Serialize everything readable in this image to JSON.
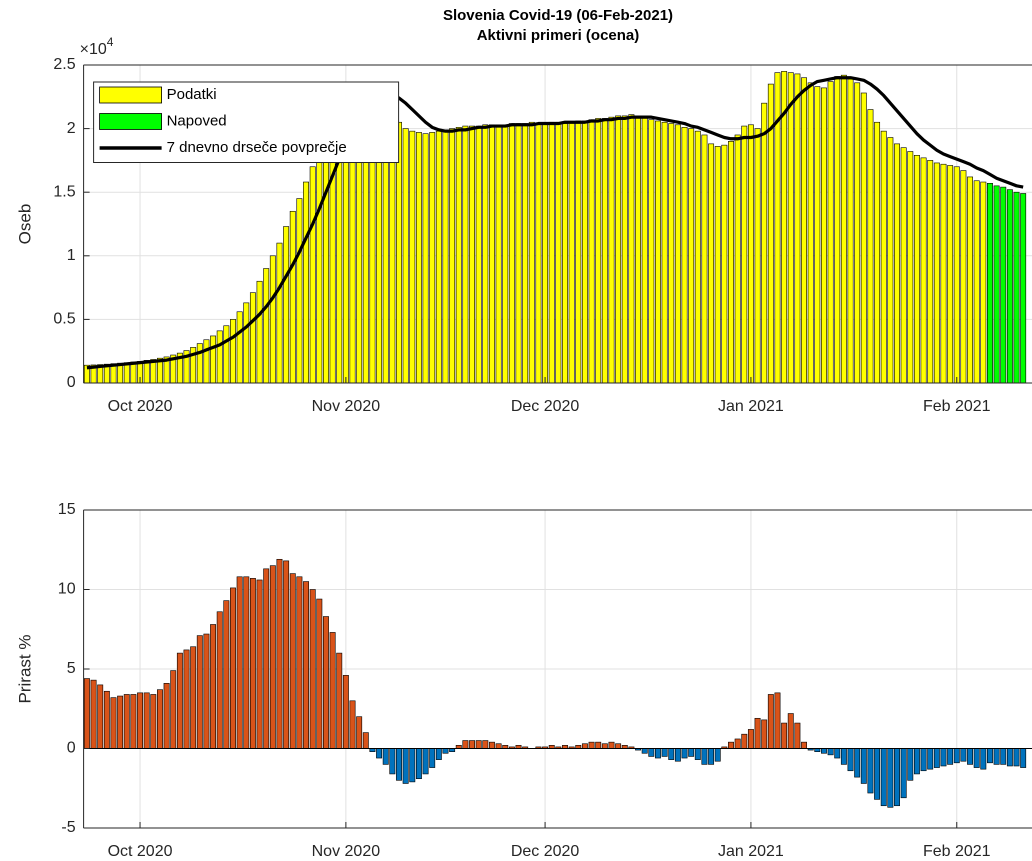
{
  "chart_data": [
    {
      "type": "bar",
      "title": "Slovenia Covid-19 (06-Feb-2021)",
      "subtitle": "Aktivni primeri (ocena)",
      "y_label": "Oseb",
      "y_multiplier": {
        "base": "×10",
        "exponent": "4"
      },
      "categories": [
        null,
        null,
        null,
        null,
        null,
        null,
        null,
        null,
        "Oct 2020",
        null,
        null,
        null,
        null,
        null,
        null,
        null,
        null,
        null,
        null,
        null,
        null,
        null,
        null,
        null,
        null,
        null,
        null,
        null,
        null,
        null,
        null,
        null,
        null,
        null,
        null,
        null,
        null,
        null,
        null,
        "Nov 2020",
        null,
        null,
        null,
        null,
        null,
        null,
        null,
        null,
        null,
        null,
        null,
        null,
        null,
        null,
        null,
        null,
        null,
        null,
        null,
        null,
        null,
        null,
        null,
        null,
        null,
        null,
        null,
        null,
        null,
        "Dec 2020",
        null,
        null,
        null,
        null,
        null,
        null,
        null,
        null,
        null,
        null,
        null,
        null,
        null,
        null,
        null,
        null,
        null,
        null,
        null,
        null,
        null,
        null,
        null,
        null,
        null,
        null,
        null,
        null,
        null,
        null,
        "Jan 2021",
        null,
        null,
        null,
        null,
        null,
        null,
        null,
        null,
        null,
        null,
        null,
        null,
        null,
        null,
        null,
        null,
        null,
        null,
        null,
        null,
        null,
        null,
        null,
        null,
        null,
        null,
        null,
        null,
        null,
        null,
        "Feb 2021",
        null,
        null,
        null,
        null,
        null,
        null,
        null,
        null,
        null,
        null
      ],
      "series": [
        {
          "name": "Podatki",
          "color": "#ffff00",
          "values": [
            1400,
            1420,
            1450,
            1480,
            1520,
            1560,
            1600,
            1650,
            1700,
            1780,
            1850,
            1950,
            2050,
            2200,
            2350,
            2550,
            2800,
            3100,
            3400,
            3700,
            4100,
            4500,
            5000,
            5600,
            6300,
            7100,
            8000,
            9000,
            10000,
            11000,
            12300,
            13500,
            14500,
            15800,
            17000,
            18300,
            19500,
            20600,
            21500,
            22300,
            23000,
            23300,
            23000,
            22500,
            22000,
            21500,
            21000,
            20500,
            20000,
            19800,
            19700,
            19600,
            19700,
            19800,
            19900,
            20000,
            20100,
            20200,
            20200,
            20200,
            20300,
            20300,
            20300,
            20300,
            20400,
            20400,
            20400,
            20500,
            20400,
            20400,
            20500,
            20500,
            20400,
            20500,
            20600,
            20600,
            20700,
            20800,
            20800,
            20900,
            21000,
            21000,
            21100,
            20900,
            20900,
            20700,
            20600,
            20500,
            20400,
            20300,
            20100,
            20000,
            19800,
            19500,
            18800,
            18600,
            18700,
            19000,
            19500,
            20200,
            20300,
            20000,
            22000,
            23500,
            24400,
            24500,
            24400,
            24300,
            24000,
            23600,
            23300,
            23200,
            23700,
            24100,
            24200,
            23900,
            23600,
            22800,
            21500,
            20500,
            19800,
            19300,
            18800,
            18500,
            18200,
            17900,
            17700,
            17500,
            17300,
            17200,
            17100,
            17000,
            16700,
            16200,
            15900,
            15800,
            null,
            null,
            null,
            null,
            null,
            null
          ]
        },
        {
          "name": "Napoved",
          "color": "#00ff00",
          "values": [
            null,
            null,
            null,
            null,
            null,
            null,
            null,
            null,
            null,
            null,
            null,
            null,
            null,
            null,
            null,
            null,
            null,
            null,
            null,
            null,
            null,
            null,
            null,
            null,
            null,
            null,
            null,
            null,
            null,
            null,
            null,
            null,
            null,
            null,
            null,
            null,
            null,
            null,
            null,
            null,
            null,
            null,
            null,
            null,
            null,
            null,
            null,
            null,
            null,
            null,
            null,
            null,
            null,
            null,
            null,
            null,
            null,
            null,
            null,
            null,
            null,
            null,
            null,
            null,
            null,
            null,
            null,
            null,
            null,
            null,
            null,
            null,
            null,
            null,
            null,
            null,
            null,
            null,
            null,
            null,
            null,
            null,
            null,
            null,
            null,
            null,
            null,
            null,
            null,
            null,
            null,
            null,
            null,
            null,
            null,
            null,
            null,
            null,
            null,
            null,
            null,
            null,
            null,
            null,
            null,
            null,
            null,
            null,
            null,
            null,
            null,
            null,
            null,
            null,
            null,
            null,
            null,
            null,
            null,
            null,
            null,
            null,
            null,
            null,
            null,
            null,
            null,
            null,
            null,
            null,
            null,
            null,
            null,
            null,
            null,
            null,
            15700,
            15500,
            15400,
            15200,
            15000,
            14900
          ]
        },
        {
          "name": "7 dnevno drseče povprečje",
          "color": "#000000",
          "type": "line",
          "values": [
            1200,
            1250,
            1300,
            1350,
            1400,
            1450,
            1500,
            1550,
            1600,
            1650,
            1700,
            1750,
            1800,
            1900,
            2000,
            2100,
            2250,
            2400,
            2600,
            2800,
            3000,
            3300,
            3600,
            4000,
            4400,
            4900,
            5400,
            6000,
            6700,
            7500,
            8400,
            9300,
            10300,
            11400,
            12500,
            13700,
            15000,
            16300,
            17600,
            18800,
            19900,
            20900,
            21700,
            22300,
            22700,
            22800,
            22700,
            22400,
            22000,
            21500,
            21000,
            20500,
            20100,
            19900,
            19800,
            19800,
            19900,
            19900,
            20000,
            20100,
            20100,
            20200,
            20200,
            20200,
            20300,
            20300,
            20300,
            20300,
            20400,
            20400,
            20400,
            20400,
            20500,
            20500,
            20500,
            20500,
            20600,
            20600,
            20700,
            20700,
            20800,
            20800,
            20900,
            20900,
            20900,
            20900,
            20800,
            20700,
            20600,
            20500,
            20400,
            20200,
            20100,
            19900,
            19700,
            19500,
            19300,
            19200,
            19200,
            19300,
            19300,
            19400,
            19600,
            20000,
            20600,
            21200,
            21900,
            22500,
            23000,
            23400,
            23700,
            23800,
            23900,
            24000,
            24000,
            24000,
            23900,
            23800,
            23500,
            23100,
            22600,
            22000,
            21400,
            20800,
            20200,
            19600,
            19100,
            18700,
            18300,
            18000,
            17800,
            17600,
            17400,
            17200,
            16900,
            16700,
            16400,
            16100,
            15900,
            15700,
            15500,
            15400
          ]
        }
      ],
      "ylim": [
        0,
        25000
      ],
      "yticks": [
        0,
        {
          "value": 5000,
          "label": "0.5"
        },
        {
          "value": 10000,
          "label": "1"
        },
        {
          "value": 15000,
          "label": "1.5"
        },
        {
          "value": 20000,
          "label": "2"
        },
        {
          "value": 25000,
          "label": "2.5"
        }
      ],
      "grid": true,
      "legend": "northwest"
    },
    {
      "type": "bar",
      "y_label": "Prirast %",
      "categories": [
        null,
        null,
        null,
        null,
        null,
        null,
        null,
        null,
        "Oct 2020",
        null,
        null,
        null,
        null,
        null,
        null,
        null,
        null,
        null,
        null,
        null,
        null,
        null,
        null,
        null,
        null,
        null,
        null,
        null,
        null,
        null,
        null,
        null,
        null,
        null,
        null,
        null,
        null,
        null,
        null,
        "Nov 2020",
        null,
        null,
        null,
        null,
        null,
        null,
        null,
        null,
        null,
        null,
        null,
        null,
        null,
        null,
        null,
        null,
        null,
        null,
        null,
        null,
        null,
        null,
        null,
        null,
        null,
        null,
        null,
        null,
        null,
        "Dec 2020",
        null,
        null,
        null,
        null,
        null,
        null,
        null,
        null,
        null,
        null,
        null,
        null,
        null,
        null,
        null,
        null,
        null,
        null,
        null,
        null,
        null,
        null,
        null,
        null,
        null,
        null,
        null,
        null,
        null,
        null,
        "Jan 2021",
        null,
        null,
        null,
        null,
        null,
        null,
        null,
        null,
        null,
        null,
        null,
        null,
        null,
        null,
        null,
        null,
        null,
        null,
        null,
        null,
        null,
        null,
        null,
        null,
        null,
        null,
        null,
        null,
        null,
        null,
        "Feb 2021",
        null,
        null,
        null,
        null,
        null,
        null,
        null,
        null,
        null,
        null
      ],
      "series": [
        {
          "color": "#d95319",
          "values": [
            4.4,
            4.3,
            4.0,
            3.6,
            3.2,
            3.3,
            3.4,
            3.4,
            3.5,
            3.5,
            3.4,
            3.7,
            4.1,
            4.9,
            6.0,
            6.2,
            6.4,
            7.1,
            7.2,
            7.8,
            8.6,
            9.3,
            10.1,
            10.8,
            10.8,
            10.7,
            10.6,
            11.3,
            11.5,
            11.9,
            11.8,
            11.0,
            10.8,
            10.5,
            10.0,
            9.4,
            8.3,
            7.3,
            6.0,
            4.6,
            3.0,
            2.0,
            1.0,
            -0.2,
            -0.6,
            -1.0,
            -1.6,
            -2.0,
            -2.2,
            -2.1,
            -1.9,
            -1.6,
            -1.2,
            -0.7,
            -0.3,
            -0.2,
            0.2,
            0.5,
            0.5,
            0.5,
            0.5,
            0.4,
            0.3,
            0.2,
            0.1,
            0.2,
            0.1,
            0.0,
            0.1,
            0.1,
            0.2,
            0.1,
            0.2,
            0.1,
            0.2,
            0.3,
            0.4,
            0.4,
            0.3,
            0.4,
            0.3,
            0.2,
            0.1,
            -0.1,
            -0.3,
            -0.5,
            -0.6,
            -0.5,
            -0.7,
            -0.8,
            -0.6,
            -0.5,
            -0.7,
            -1.0,
            -1.0,
            -0.8,
            0.1,
            0.4,
            0.6,
            0.9,
            1.2,
            1.9,
            1.8,
            3.4,
            3.5,
            1.6,
            2.2,
            1.6,
            0.4,
            -0.1,
            -0.2,
            -0.3,
            -0.4,
            -0.6,
            -1.0,
            -1.4,
            -1.8,
            -2.2,
            -2.8,
            -3.2,
            -3.6,
            -3.7,
            -3.6,
            -3.1,
            -2.0,
            -1.6,
            -1.4,
            -1.3,
            -1.2,
            -1.1,
            -1.0,
            -0.9,
            -0.8,
            -1.0,
            -1.2,
            -1.3,
            null,
            null,
            null,
            null,
            null,
            null
          ]
        },
        {
          "color": "#00ff00",
          "values": [
            null,
            null,
            null,
            null,
            null,
            null,
            null,
            null,
            null,
            null,
            null,
            null,
            null,
            null,
            null,
            null,
            null,
            null,
            null,
            null,
            null,
            null,
            null,
            null,
            null,
            null,
            null,
            null,
            null,
            null,
            null,
            null,
            null,
            null,
            null,
            null,
            null,
            null,
            null,
            null,
            null,
            null,
            null,
            null,
            null,
            null,
            null,
            null,
            null,
            null,
            null,
            null,
            null,
            null,
            null,
            null,
            null,
            null,
            null,
            null,
            null,
            null,
            null,
            null,
            null,
            null,
            null,
            null,
            null,
            null,
            null,
            null,
            null,
            null,
            null,
            null,
            null,
            null,
            null,
            null,
            null,
            null,
            null,
            null,
            null,
            null,
            null,
            null,
            null,
            null,
            null,
            null,
            null,
            null,
            null,
            null,
            null,
            null,
            null,
            null,
            null,
            null,
            null,
            null,
            null,
            null,
            null,
            null,
            null,
            null,
            null,
            null,
            null,
            null,
            null,
            null,
            null,
            null,
            null,
            null,
            null,
            null,
            null,
            null,
            null,
            null,
            null,
            null,
            null,
            null,
            null,
            null,
            null,
            null,
            null,
            null,
            -0.9,
            -1.0,
            -1.0,
            -1.1,
            -1.1,
            -1.2
          ]
        }
      ],
      "negative_color": "#0072bd",
      "ylim": [
        -5,
        15
      ],
      "yticks": [
        -5,
        0,
        5,
        10,
        15
      ],
      "grid": true
    }
  ]
}
